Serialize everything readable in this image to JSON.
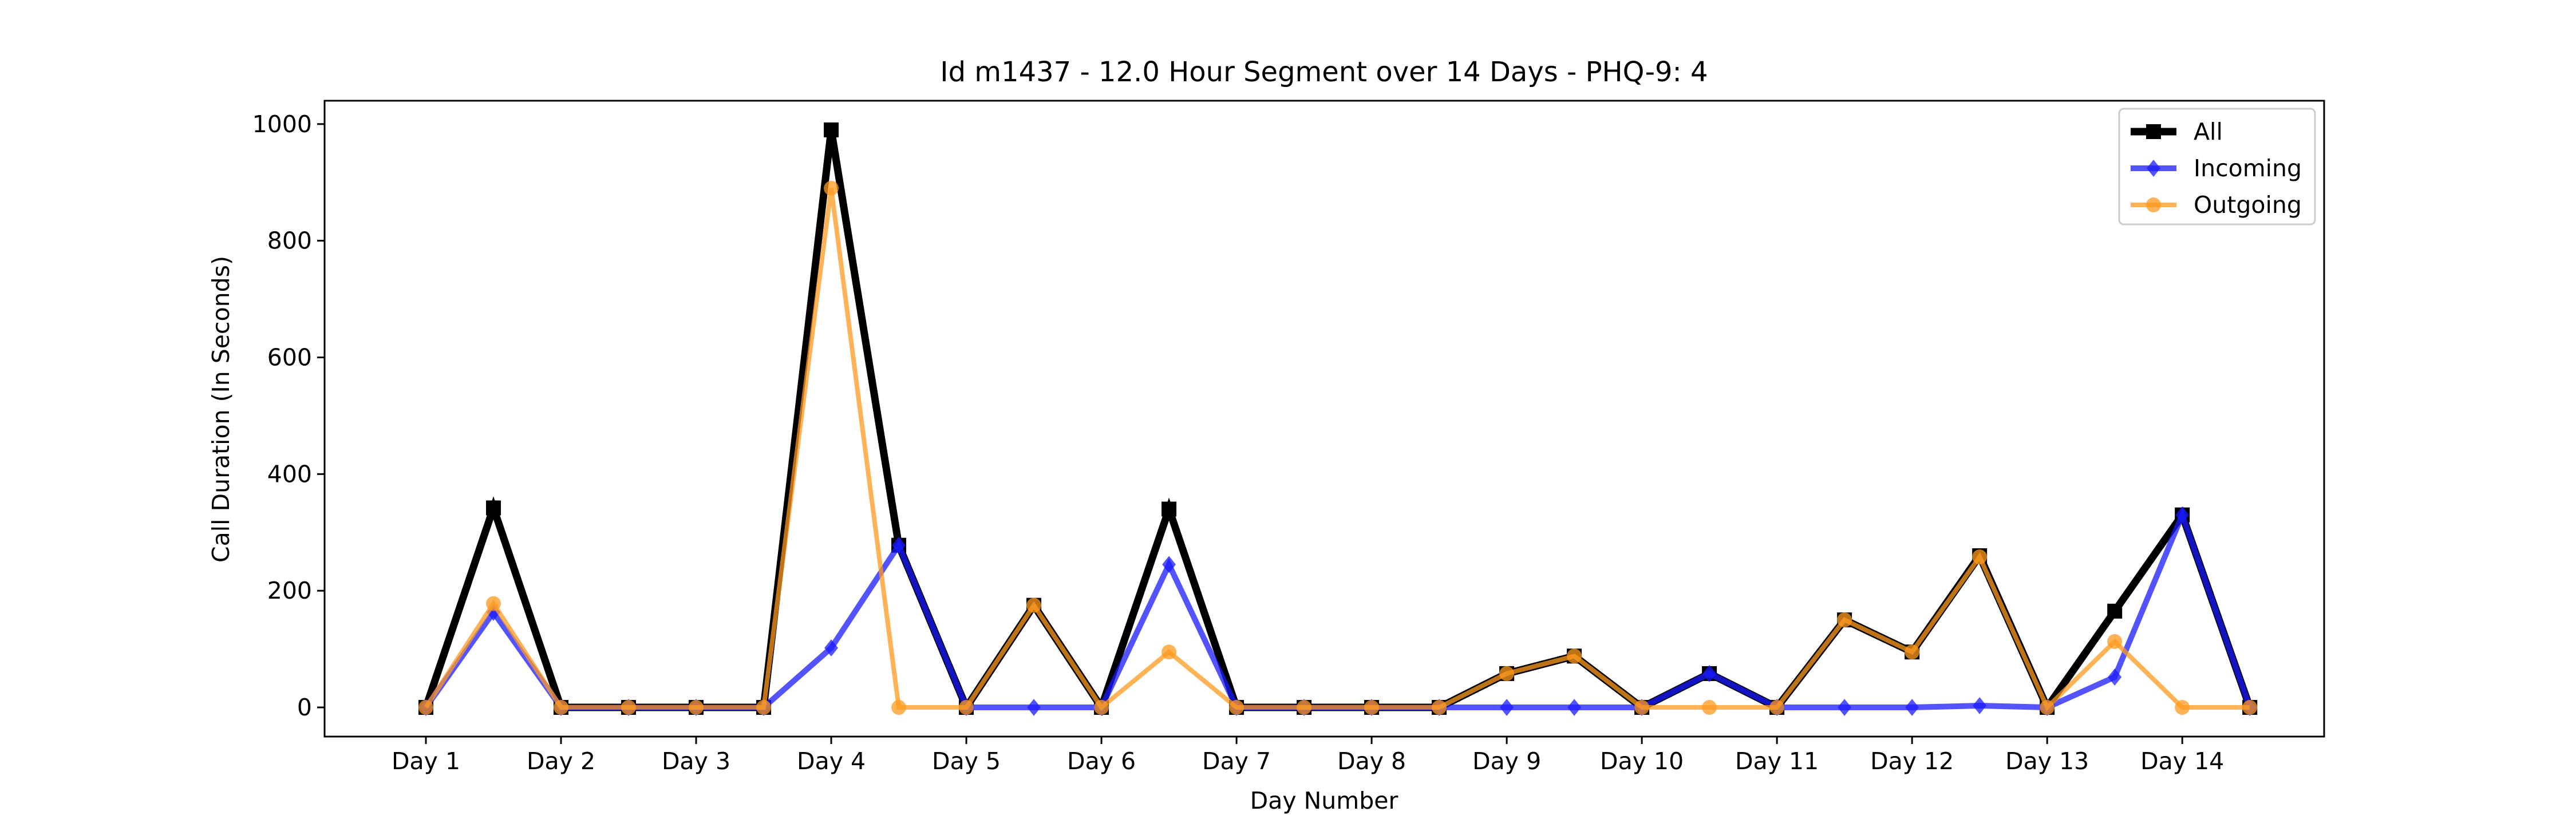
{
  "chart_data": {
    "type": "line",
    "title": "Id m1437 - 12.0 Hour Segment over 14 Days - PHQ-9: 4",
    "xlabel": "Day Number",
    "ylabel": "Call Duration (In Seconds)",
    "ylim": [
      -50,
      1040
    ],
    "yticks": [
      0,
      200,
      400,
      600,
      800,
      1000
    ],
    "xlim": [
      0.25,
      15.05
    ],
    "xticks": [
      {
        "x": 1,
        "label": "Day 1"
      },
      {
        "x": 2,
        "label": "Day 2"
      },
      {
        "x": 3,
        "label": "Day 3"
      },
      {
        "x": 4,
        "label": "Day 4"
      },
      {
        "x": 5,
        "label": "Day 5"
      },
      {
        "x": 6,
        "label": "Day 6"
      },
      {
        "x": 7,
        "label": "Day 7"
      },
      {
        "x": 8,
        "label": "Day 8"
      },
      {
        "x": 9,
        "label": "Day 9"
      },
      {
        "x": 10,
        "label": "Day 10"
      },
      {
        "x": 11,
        "label": "Day 11"
      },
      {
        "x": 12,
        "label": "Day 12"
      },
      {
        "x": 13,
        "label": "Day 13"
      },
      {
        "x": 14,
        "label": "Day 14"
      }
    ],
    "grid": false,
    "legend_position": "top-right",
    "x": [
      1,
      1.5,
      2,
      2.5,
      3,
      3.5,
      4,
      4.5,
      5,
      5.5,
      6,
      6.5,
      7,
      7.5,
      8,
      8.5,
      9,
      9.5,
      10,
      10.5,
      11,
      11.5,
      12,
      12.5,
      13,
      13.5,
      14,
      14.5
    ],
    "series": [
      {
        "name": "All",
        "color": "#000000",
        "marker": "square",
        "values": [
          0,
          342,
          0,
          0,
          0,
          0,
          990,
          278,
          0,
          175,
          0,
          340,
          0,
          0,
          0,
          0,
          58,
          88,
          0,
          58,
          0,
          150,
          95,
          260,
          0,
          165,
          330,
          0
        ]
      },
      {
        "name": "Incoming",
        "color": "#1a1aff",
        "marker": "diamond",
        "values": [
          0,
          163,
          0,
          0,
          0,
          0,
          102,
          278,
          0,
          0,
          0,
          245,
          0,
          0,
          0,
          0,
          0,
          0,
          0,
          58,
          0,
          0,
          0,
          3,
          0,
          52,
          330,
          0
        ]
      },
      {
        "name": "Outgoing",
        "color": "#ff9a1f",
        "marker": "circle",
        "values": [
          0,
          178,
          0,
          0,
          0,
          0,
          890,
          0,
          0,
          175,
          0,
          95,
          0,
          0,
          0,
          0,
          58,
          88,
          0,
          0,
          0,
          150,
          95,
          258,
          0,
          113,
          0,
          0
        ]
      }
    ]
  }
}
